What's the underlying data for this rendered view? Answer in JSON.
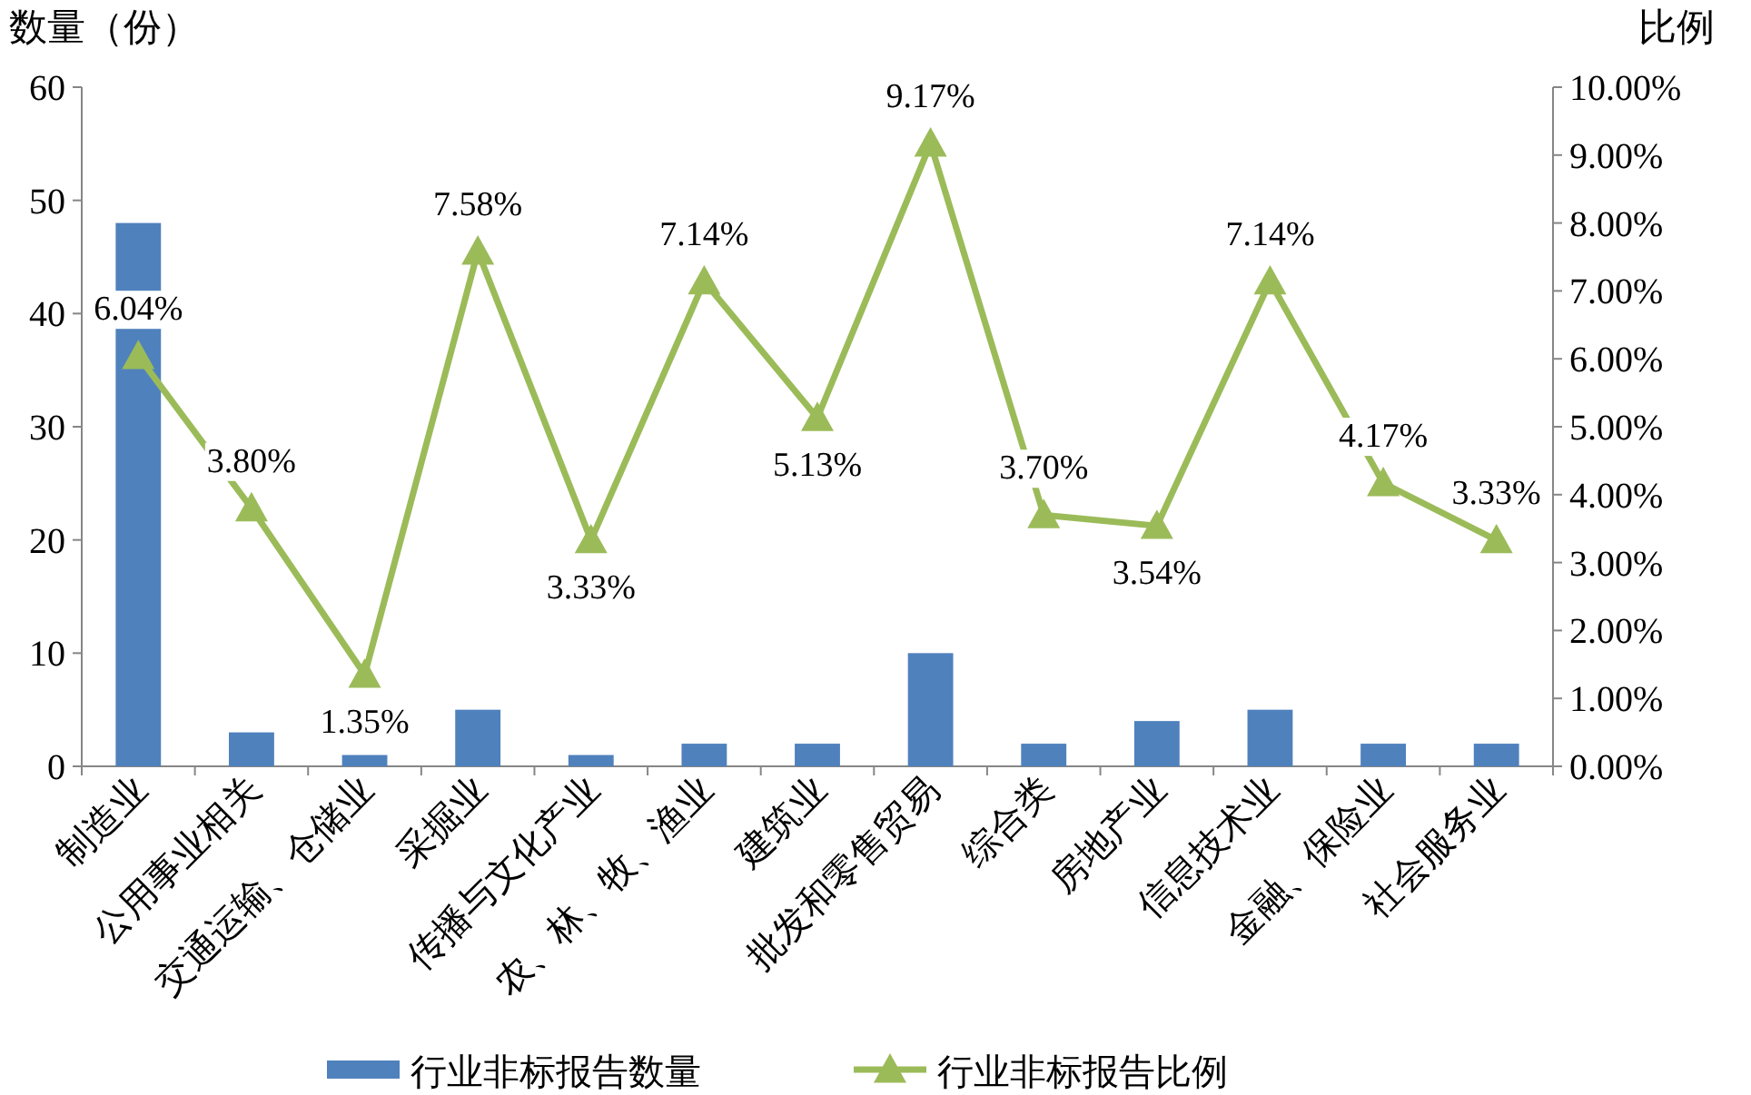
{
  "chart_data": {
    "type": "bar",
    "ylabel": "数量（份）",
    "y2label": "比例",
    "categories": [
      "制造业",
      "公用事业相关",
      "交通运输、仓储业",
      "采掘业",
      "传播与文化产业",
      "农、林、牧、渔业",
      "建筑业",
      "批发和零售贸易",
      "综合类",
      "房地产业",
      "信息技术业",
      "金融、保险业",
      "社会服务业"
    ],
    "series": [
      {
        "name": "行业非标报告数量",
        "color": "#4f81bd",
        "values": [
          48,
          3,
          1,
          5,
          1,
          2,
          2,
          10,
          2,
          4,
          5,
          2,
          2
        ]
      },
      {
        "name": "行业非标报告比例",
        "type": "line",
        "axis": "y2",
        "color": "#9bbb59",
        "marker": "triangle",
        "values": [
          6.04,
          3.8,
          1.35,
          7.58,
          3.33,
          7.14,
          5.13,
          9.17,
          3.7,
          3.54,
          7.14,
          4.17,
          3.33
        ],
        "value_labels": [
          "6.04%",
          "3.80%",
          "1.35%",
          "7.58%",
          "3.33%",
          "7.14%",
          "5.13%",
          "9.17%",
          "3.70%",
          "3.54%",
          "7.14%",
          "4.17%",
          "3.33%"
        ]
      }
    ],
    "ylim": [
      0,
      60
    ],
    "yticks": [
      0,
      10,
      20,
      30,
      40,
      50,
      60
    ],
    "y2lim": [
      0,
      10
    ],
    "y2ticks": [
      {
        "value": 0,
        "label": "0.00%"
      },
      {
        "value": 1,
        "label": "1.00%"
      },
      {
        "value": 2,
        "label": "2.00%"
      },
      {
        "value": 3,
        "label": "3.00%"
      },
      {
        "value": 4,
        "label": "4.00%"
      },
      {
        "value": 5,
        "label": "5.00%"
      },
      {
        "value": 6,
        "label": "6.00%"
      },
      {
        "value": 7,
        "label": "7.00%"
      },
      {
        "value": 8,
        "label": "8.00%"
      },
      {
        "value": 9,
        "label": "9.00%"
      },
      {
        "value": 10,
        "label": "10.00%"
      }
    ],
    "legend": "bottom"
  }
}
